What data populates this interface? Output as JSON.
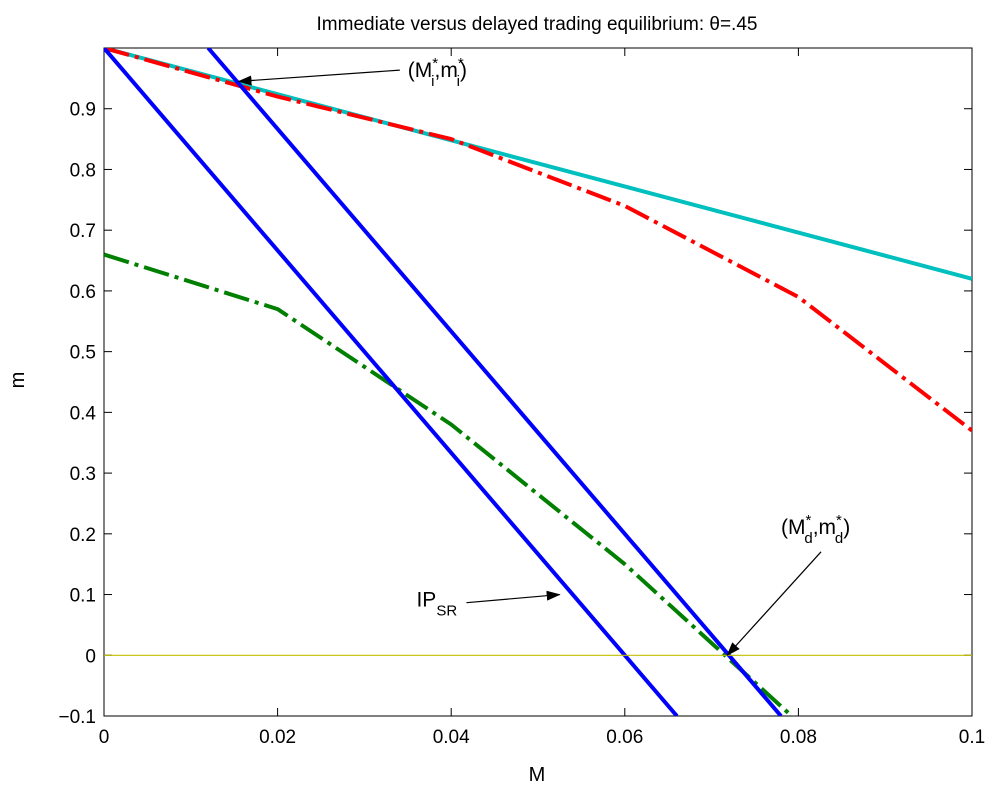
{
  "chart_data": {
    "type": "line",
    "title": "Immediate versus delayed trading equilibrium: θ=.45",
    "xlabel": "M",
    "ylabel": "m",
    "xlim": [
      0,
      0.1
    ],
    "ylim": [
      -0.1,
      1.0
    ],
    "x_ticks": [
      "0",
      "0.02",
      "0.04",
      "0.06",
      "0.08",
      "0.1"
    ],
    "y_ticks": [
      "−0.1",
      "0",
      "0.1",
      "0.2",
      "0.3",
      "0.4",
      "0.5",
      "0.6",
      "0.7",
      "0.8",
      "0.9"
    ],
    "grid": false,
    "series": [
      {
        "color": "#00bfbf",
        "style": "solid",
        "x": [
          0,
          0.1
        ],
        "y": [
          1.0,
          0.62
        ]
      },
      {
        "color": "#ff0000",
        "style": "dashdot",
        "x": [
          0,
          0.02,
          0.04,
          0.06,
          0.08,
          0.1
        ],
        "y": [
          1.0,
          0.92,
          0.85,
          0.74,
          0.59,
          0.37
        ]
      },
      {
        "color": "#007f00",
        "style": "dashdot",
        "x": [
          0,
          0.02,
          0.04,
          0.06,
          0.07,
          0.08
        ],
        "y": [
          0.66,
          0.57,
          0.38,
          0.15,
          0.02,
          -0.11
        ]
      },
      {
        "color": "#0000ff",
        "style": "solid",
        "x": [
          0,
          0.066
        ],
        "y": [
          1.0,
          -0.1
        ]
      },
      {
        "color": "#0000ff",
        "style": "solid",
        "x": [
          0.012,
          0.078
        ],
        "y": [
          1.0,
          -0.1
        ]
      },
      {
        "color": "#bfbf00",
        "style": "solid",
        "x": [
          0,
          0.1
        ],
        "y": [
          0,
          0
        ]
      }
    ],
    "annotations": [
      {
        "main": "(M",
        "sup": "*",
        "sub": "i",
        "mid": ",m",
        "sup2": "*",
        "sub2": "i",
        "end": ")",
        "point": [
          0.0155,
          0.945
        ],
        "text_at": [
          0.035,
          0.952
        ]
      },
      {
        "main": "(M",
        "sup": "*",
        "sub": "d",
        "mid": ",m",
        "sup2": "*",
        "sub2": "d",
        "end": ")",
        "point": [
          0.0718,
          0.0
        ],
        "text_at": [
          0.078,
          0.2
        ]
      },
      {
        "main": "IP",
        "sub": "SR",
        "point": [
          0.0525,
          0.1
        ],
        "text_at": [
          0.036,
          0.08
        ]
      }
    ]
  }
}
